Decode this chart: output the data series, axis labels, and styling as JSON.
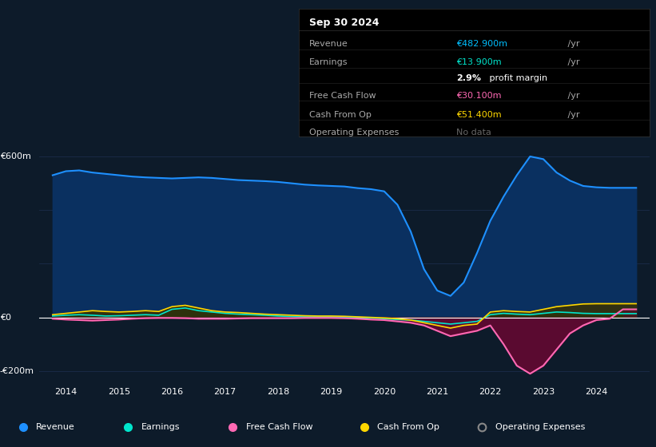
{
  "background_color": "#0d1b2a",
  "plot_bg_color": "#0d1b2a",
  "grid_color": "#1e3050",
  "zero_line_color": "#ffffff",
  "title_box": {
    "date": "Sep 30 2024",
    "rows": [
      {
        "label": "Revenue",
        "value": "€482.900m /yr",
        "value_color": "#00bfff"
      },
      {
        "label": "Earnings",
        "value": "€13.900m /yr",
        "value_color": "#00e5cc"
      },
      {
        "label": "",
        "value": "2.9% profit margin",
        "value_color": "#ffffff"
      },
      {
        "label": "Free Cash Flow",
        "value": "€30.100m /yr",
        "value_color": "#ff69b4"
      },
      {
        "label": "Cash From Op",
        "value": "€51.400m /yr",
        "value_color": "#ffd700"
      },
      {
        "label": "Operating Expenses",
        "value": "No data",
        "value_color": "#888888"
      }
    ]
  },
  "years": [
    2013.75,
    2014,
    2014.25,
    2014.5,
    2014.75,
    2015,
    2015.25,
    2015.5,
    2015.75,
    2016,
    2016.25,
    2016.5,
    2016.75,
    2017,
    2017.25,
    2017.5,
    2017.75,
    2018,
    2018.25,
    2018.5,
    2018.75,
    2019,
    2019.25,
    2019.5,
    2019.75,
    2020,
    2020.25,
    2020.5,
    2020.75,
    2021,
    2021.25,
    2021.5,
    2021.75,
    2022,
    2022.25,
    2022.5,
    2022.75,
    2023,
    2023.25,
    2023.5,
    2023.75,
    2024,
    2024.25,
    2024.5,
    2024.75
  ],
  "revenue": [
    530,
    545,
    548,
    540,
    535,
    530,
    525,
    522,
    520,
    518,
    520,
    522,
    520,
    516,
    512,
    510,
    508,
    505,
    500,
    495,
    492,
    490,
    488,
    482,
    478,
    470,
    420,
    320,
    180,
    100,
    80,
    130,
    240,
    360,
    450,
    530,
    600,
    590,
    540,
    510,
    490,
    485,
    483,
    483,
    483
  ],
  "earnings": [
    5,
    8,
    10,
    8,
    5,
    6,
    8,
    10,
    8,
    30,
    35,
    25,
    20,
    15,
    12,
    10,
    8,
    5,
    3,
    2,
    2,
    2,
    1,
    0,
    -2,
    -5,
    -8,
    -10,
    -15,
    -20,
    -25,
    -20,
    -15,
    10,
    15,
    12,
    10,
    15,
    20,
    18,
    15,
    14,
    14,
    14,
    14
  ],
  "free_cash_flow": [
    -5,
    -8,
    -10,
    -12,
    -10,
    -8,
    -5,
    -3,
    -2,
    -2,
    -3,
    -5,
    -5,
    -5,
    -4,
    -3,
    -3,
    -3,
    -3,
    -2,
    -2,
    -2,
    -3,
    -5,
    -8,
    -10,
    -15,
    -20,
    -30,
    -50,
    -70,
    -60,
    -50,
    -30,
    -100,
    -180,
    -210,
    -180,
    -120,
    -60,
    -30,
    -10,
    -5,
    30,
    30
  ],
  "cash_from_op": [
    10,
    15,
    20,
    25,
    22,
    20,
    22,
    25,
    22,
    40,
    45,
    35,
    25,
    20,
    18,
    15,
    12,
    10,
    8,
    6,
    5,
    5,
    4,
    2,
    0,
    -2,
    -5,
    -10,
    -20,
    -30,
    -40,
    -30,
    -25,
    20,
    25,
    22,
    20,
    30,
    40,
    45,
    50,
    51,
    51,
    51,
    51
  ],
  "revenue_color": "#1e90ff",
  "revenue_fill": "#0a3060",
  "earnings_color": "#00e5cc",
  "earnings_fill": "#003a35",
  "fcf_color": "#ff69b4",
  "fcf_fill": "#5a0a30",
  "cashop_color": "#ffd700",
  "cashop_fill": "#3a3000",
  "ylim": [
    -250,
    650
  ],
  "yticks": [
    -200,
    0,
    600
  ],
  "ytick_labels": [
    "-€200m",
    "€0",
    "€600m"
  ],
  "xticks": [
    2014,
    2015,
    2016,
    2017,
    2018,
    2019,
    2020,
    2021,
    2022,
    2023,
    2024
  ],
  "legend": [
    {
      "label": "Revenue",
      "color": "#1e90ff",
      "filled": true
    },
    {
      "label": "Earnings",
      "color": "#00e5cc",
      "filled": true
    },
    {
      "label": "Free Cash Flow",
      "color": "#ff69b4",
      "filled": true
    },
    {
      "label": "Cash From Op",
      "color": "#ffd700",
      "filled": true
    },
    {
      "label": "Operating Expenses",
      "color": "#888888",
      "filled": false
    }
  ]
}
